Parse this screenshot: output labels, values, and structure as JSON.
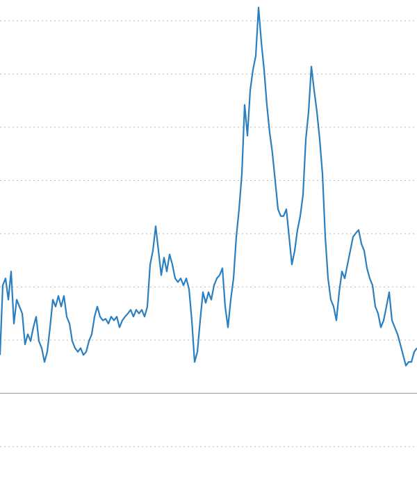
{
  "chart_data": {
    "type": "line",
    "color": "#2a7fc1",
    "grid": true,
    "ylim": [
      -1.76,
      7.39
    ],
    "yticks": [
      -1,
      0,
      1,
      2,
      3,
      4,
      5,
      6,
      7
    ],
    "values": [
      0.72,
      2.03,
      2.16,
      1.76,
      2.29,
      1.31,
      1.76,
      1.63,
      1.5,
      0.92,
      1.11,
      0.98,
      1.24,
      1.44,
      0.98,
      0.85,
      0.59,
      0.78,
      1.24,
      1.76,
      1.63,
      1.83,
      1.63,
      1.83,
      1.44,
      1.31,
      0.98,
      0.85,
      0.78,
      0.85,
      0.72,
      0.78,
      0.98,
      1.11,
      1.44,
      1.63,
      1.44,
      1.37,
      1.4,
      1.31,
      1.44,
      1.37,
      1.44,
      1.24,
      1.37,
      1.44,
      1.5,
      1.57,
      1.44,
      1.57,
      1.5,
      1.57,
      1.44,
      1.63,
      2.42,
      2.68,
      3.14,
      2.68,
      2.22,
      2.55,
      2.29,
      2.61,
      2.42,
      2.16,
      2.09,
      2.16,
      2.03,
      2.16,
      1.96,
      1.37,
      0.59,
      0.78,
      1.37,
      1.9,
      1.7,
      1.9,
      1.76,
      2.03,
      2.16,
      2.22,
      2.35,
      1.63,
      1.24,
      1.76,
      2.16,
      2.94,
      3.46,
      4.12,
      5.42,
      4.84,
      5.69,
      6.08,
      6.34,
      7.25,
      6.6,
      6.08,
      5.42,
      4.9,
      4.51,
      3.99,
      3.46,
      3.33,
      3.33,
      3.46,
      2.94,
      2.42,
      2.68,
      3.07,
      3.33,
      3.73,
      4.77,
      5.29,
      6.14,
      5.69,
      5.29,
      4.77,
      4.12,
      2.94,
      2.16,
      1.76,
      1.63,
      1.37,
      1.9,
      2.29,
      2.16,
      2.42,
      2.68,
      2.94,
      3.01,
      3.07,
      2.81,
      2.68,
      2.35,
      2.16,
      2.03,
      1.63,
      1.5,
      1.24,
      1.37,
      1.63,
      1.9,
      1.37,
      1.24,
      1.11,
      0.92,
      0.72,
      0.52,
      0.59,
      0.59,
      0.78,
      0.85
    ]
  }
}
